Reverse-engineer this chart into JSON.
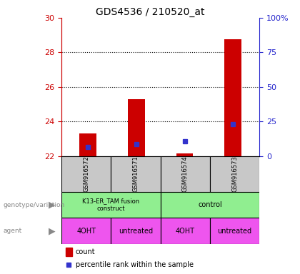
{
  "title": "GDS4536 / 210520_at",
  "samples": [
    "GSM916572",
    "GSM916571",
    "GSM916574",
    "GSM916573"
  ],
  "count_values": [
    23.3,
    25.3,
    22.15,
    28.75
  ],
  "percentile_values": [
    6.5,
    8.5,
    11.0,
    23.0
  ],
  "ylim_left": [
    22,
    30
  ],
  "ylim_right": [
    0,
    100
  ],
  "yticks_left": [
    22,
    24,
    26,
    28,
    30
  ],
  "yticks_right": [
    0,
    25,
    50,
    75,
    100
  ],
  "bar_color": "#cc0000",
  "percentile_color": "#3333cc",
  "bar_bottom": 22,
  "bar_width": 0.35,
  "x_positions": [
    0,
    1,
    2,
    3
  ],
  "genotype_labels": [
    "K13-ER_TAM fusion\nconstruct",
    "control"
  ],
  "genotype_color": "#90ee90",
  "agent_labels": [
    "4OHT",
    "untreated",
    "4OHT",
    "untreated"
  ],
  "agent_color": "#ee55ee",
  "sample_bg_color": "#c8c8c8",
  "left_axis_color": "#cc0000",
  "right_axis_color": "#2222cc",
  "label_color": "#888888",
  "grid_dotted_color": "#555555",
  "legend_red": "#cc0000",
  "legend_blue": "#3333cc"
}
